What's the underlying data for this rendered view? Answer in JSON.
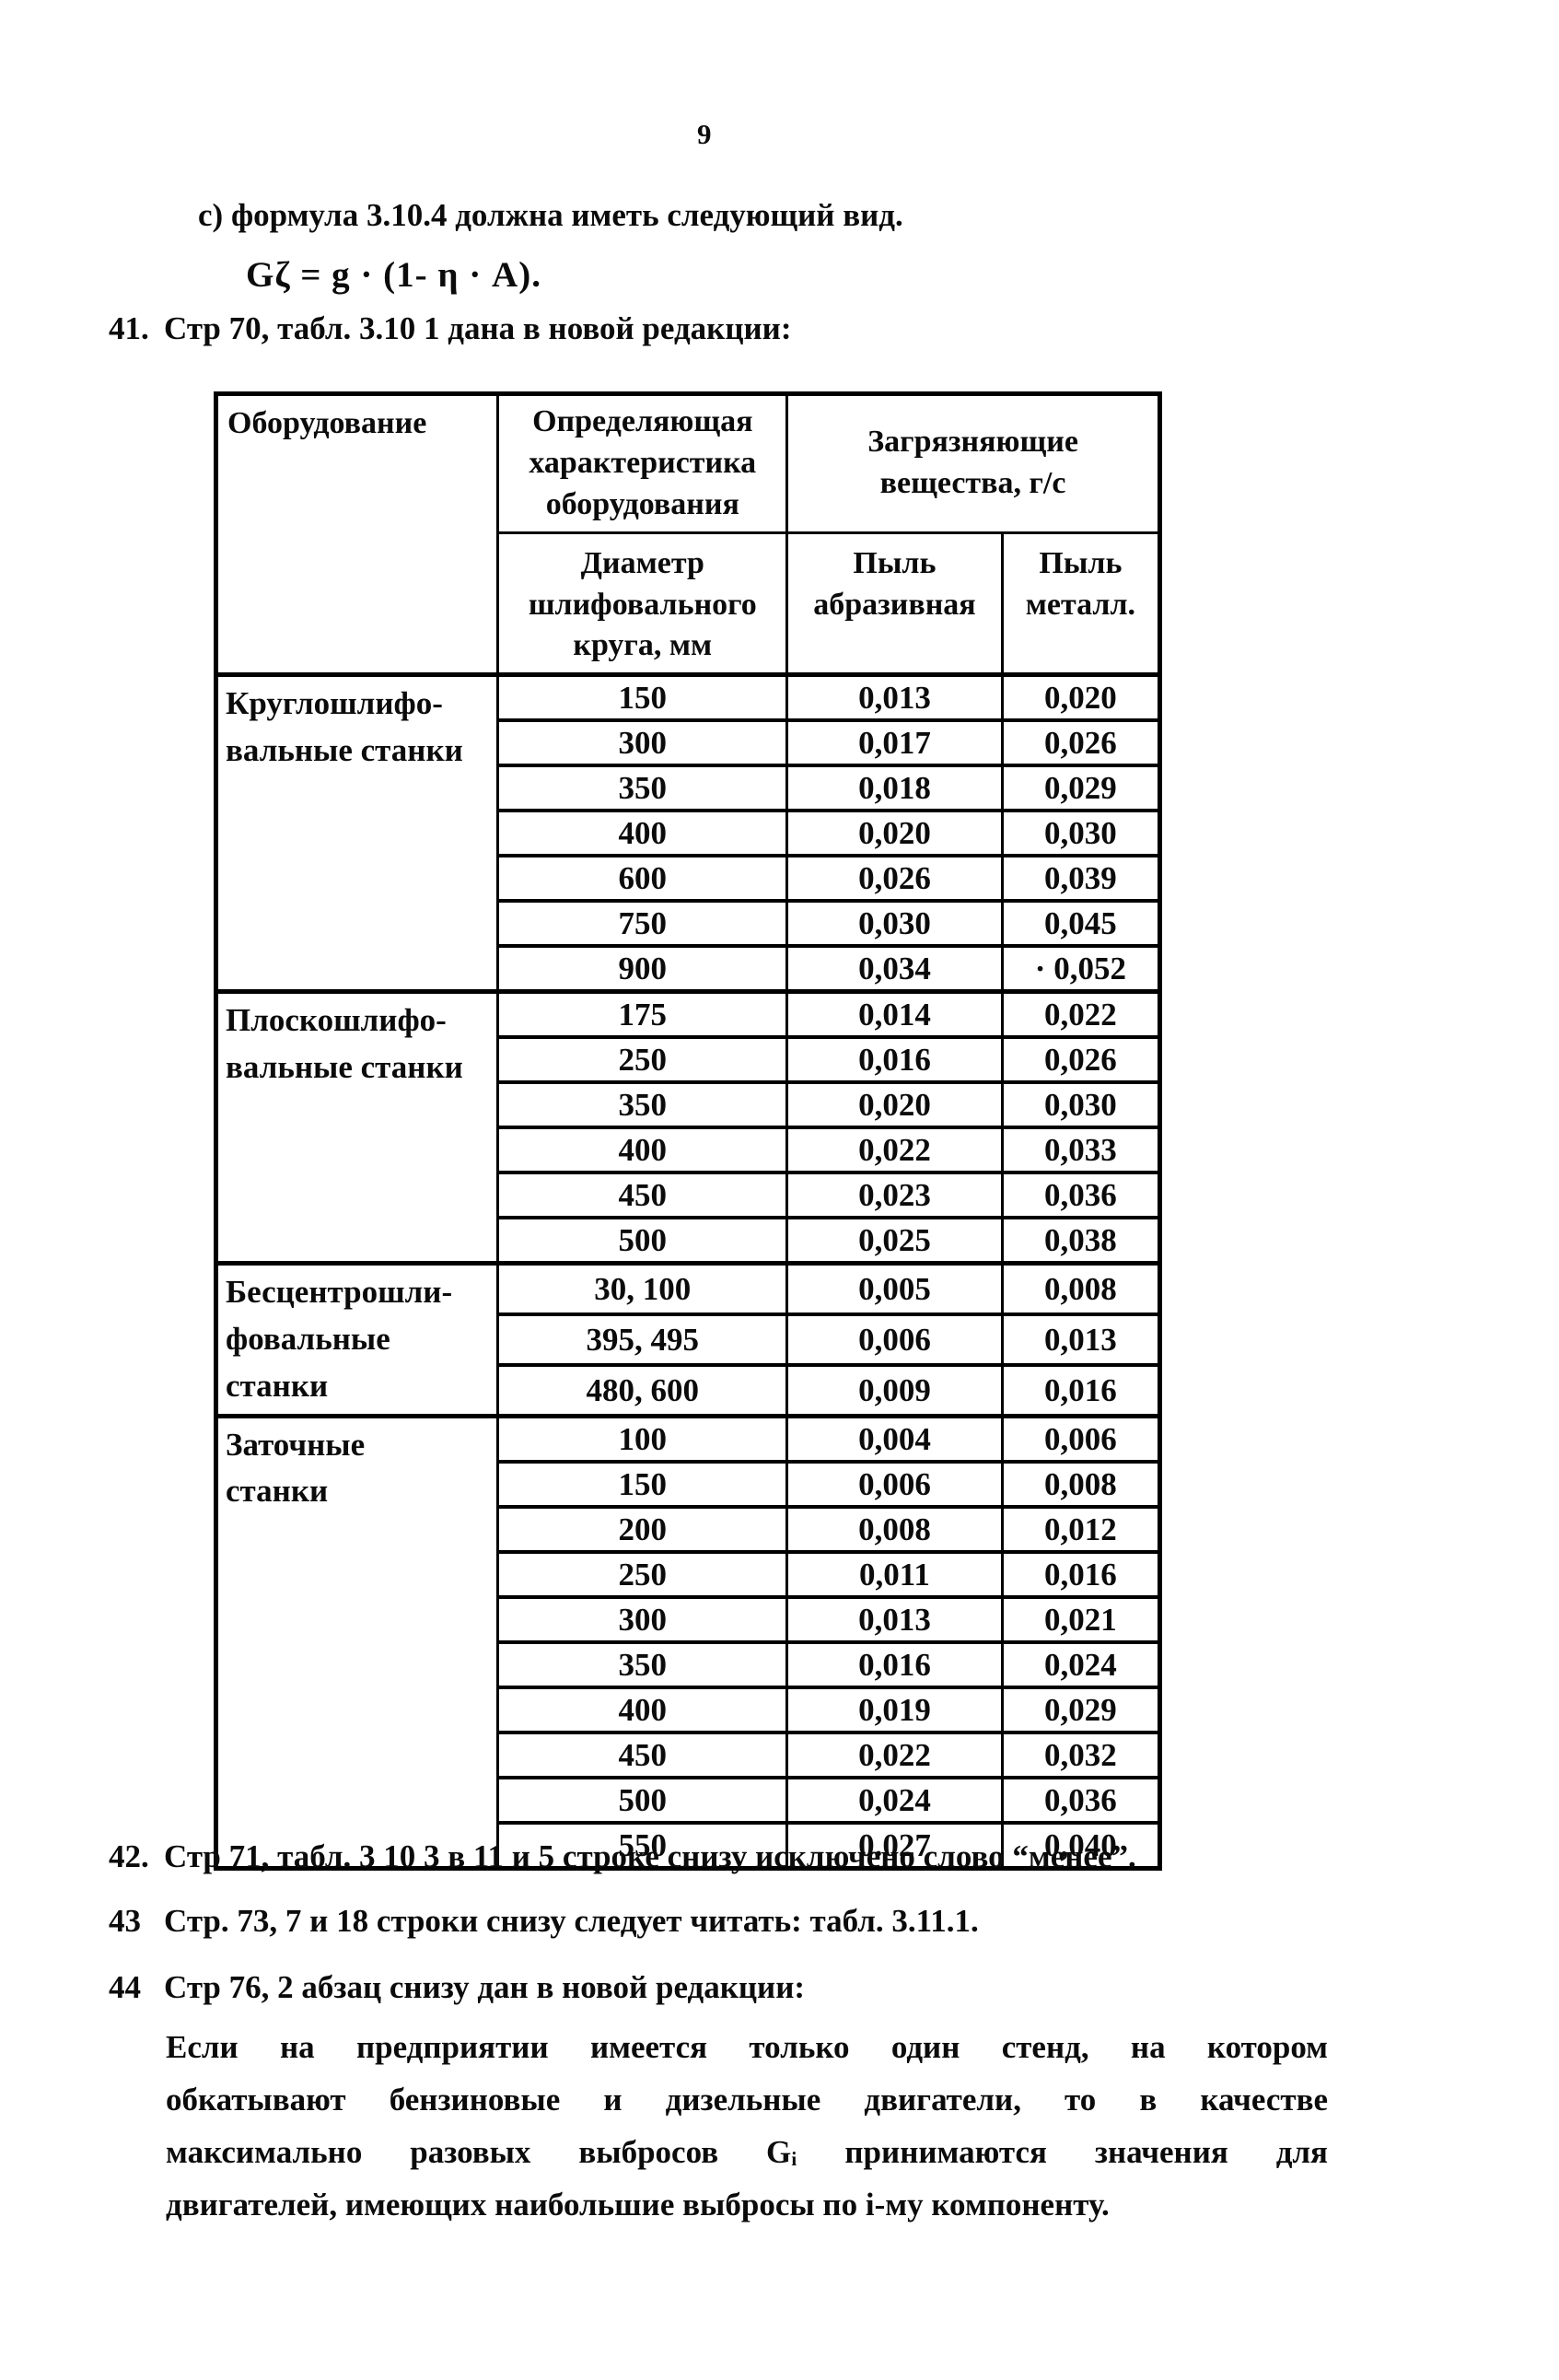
{
  "page": {
    "number": "9"
  },
  "intro": {
    "item_c": "с) формула 3.10.4 должна иметь следующий вид.",
    "formula": "Gζ = g · (1- η · A)."
  },
  "items": [
    {
      "num": "41.",
      "text": "Стр  70, табл. 3.10 1 дана в новой редакции:"
    },
    {
      "num": "42.",
      "text": "Стр  71, табл. 3 10 3 в 11 и 5 строке снизу исключено слово  “менее”."
    },
    {
      "num": "43",
      "text": "Стр. 73, 7 и 18 строки снизу следует читать:  табл. 3.11.1."
    },
    {
      "num": "44",
      "text": "Стр  76, 2 абзац снизу дан в новой редакции:"
    }
  ],
  "paragraph": {
    "lines": [
      "Если  на  предприятии  имеется  только  один  стенд,  на  котором",
      "обкатывают  бензиновые  и  дизельные  двигатели,  то   в  качестве",
      "максимально  разовых  выбросов  Gᵢ  принимаются  значения  для",
      "двигателей, имеющих наибольшие выбросы по i-му компоненту."
    ]
  },
  "table": {
    "headers": {
      "equipment": "Оборудование",
      "characteristic": "Определяющая\nхарактеристика\nоборудования",
      "pollutants": "Загрязняющие\nвещества, г/с",
      "diameter": "Диаметр\nшлифовального\nкруга, мм",
      "dust_abrasive": "Пыль\nабразивная",
      "dust_metal": "Пыль\nметалл."
    },
    "groups": [
      {
        "label": "Круглошлифо-\nвальные станки",
        "rows": [
          [
            "150",
            "0,013",
            "0,020"
          ],
          [
            "300",
            "0,017",
            "0,026"
          ],
          [
            "350",
            "0,018",
            "0,029"
          ],
          [
            "400",
            "0,020",
            "0,030"
          ],
          [
            "600",
            "0,026",
            "0,039"
          ],
          [
            "750",
            "0,030",
            "0,045"
          ],
          [
            "900",
            "0,034",
            "· 0,052"
          ]
        ]
      },
      {
        "label": "Плоскошлифо-\nвальные станки",
        "rows": [
          [
            "175",
            "0,014",
            "0,022"
          ],
          [
            "250",
            "0,016",
            "0,026"
          ],
          [
            "350",
            "0,020",
            "0,030"
          ],
          [
            "400",
            "0,022",
            "0,033"
          ],
          [
            "450",
            "0,023",
            "0,036"
          ],
          [
            "500",
            "0,025",
            "0,038"
          ]
        ]
      },
      {
        "label": "Бесцентрошли-\nфовальные\nстанки",
        "rows": [
          [
            "30, 100",
            "0,005",
            "0,008"
          ],
          [
            "395, 495",
            "0,006",
            "0,013"
          ],
          [
            "480, 600",
            "0,009",
            "0,016"
          ]
        ]
      },
      {
        "label": "Заточные\nстанки",
        "rows": [
          [
            "100",
            "0,004",
            "0,006"
          ],
          [
            "150",
            "0,006",
            "0,008"
          ],
          [
            "200",
            "0,008",
            "0,012"
          ],
          [
            "250",
            "0,011",
            "0,016"
          ],
          [
            "300",
            "0,013",
            "0,021"
          ],
          [
            "350",
            "0,016",
            "0,024"
          ],
          [
            "400",
            "0,019",
            "0,029"
          ],
          [
            "450",
            "0,022",
            "0,032"
          ],
          [
            "500",
            "0,024",
            "0,036"
          ],
          [
            "550",
            "0.027",
            "0,040"
          ]
        ]
      }
    ]
  }
}
